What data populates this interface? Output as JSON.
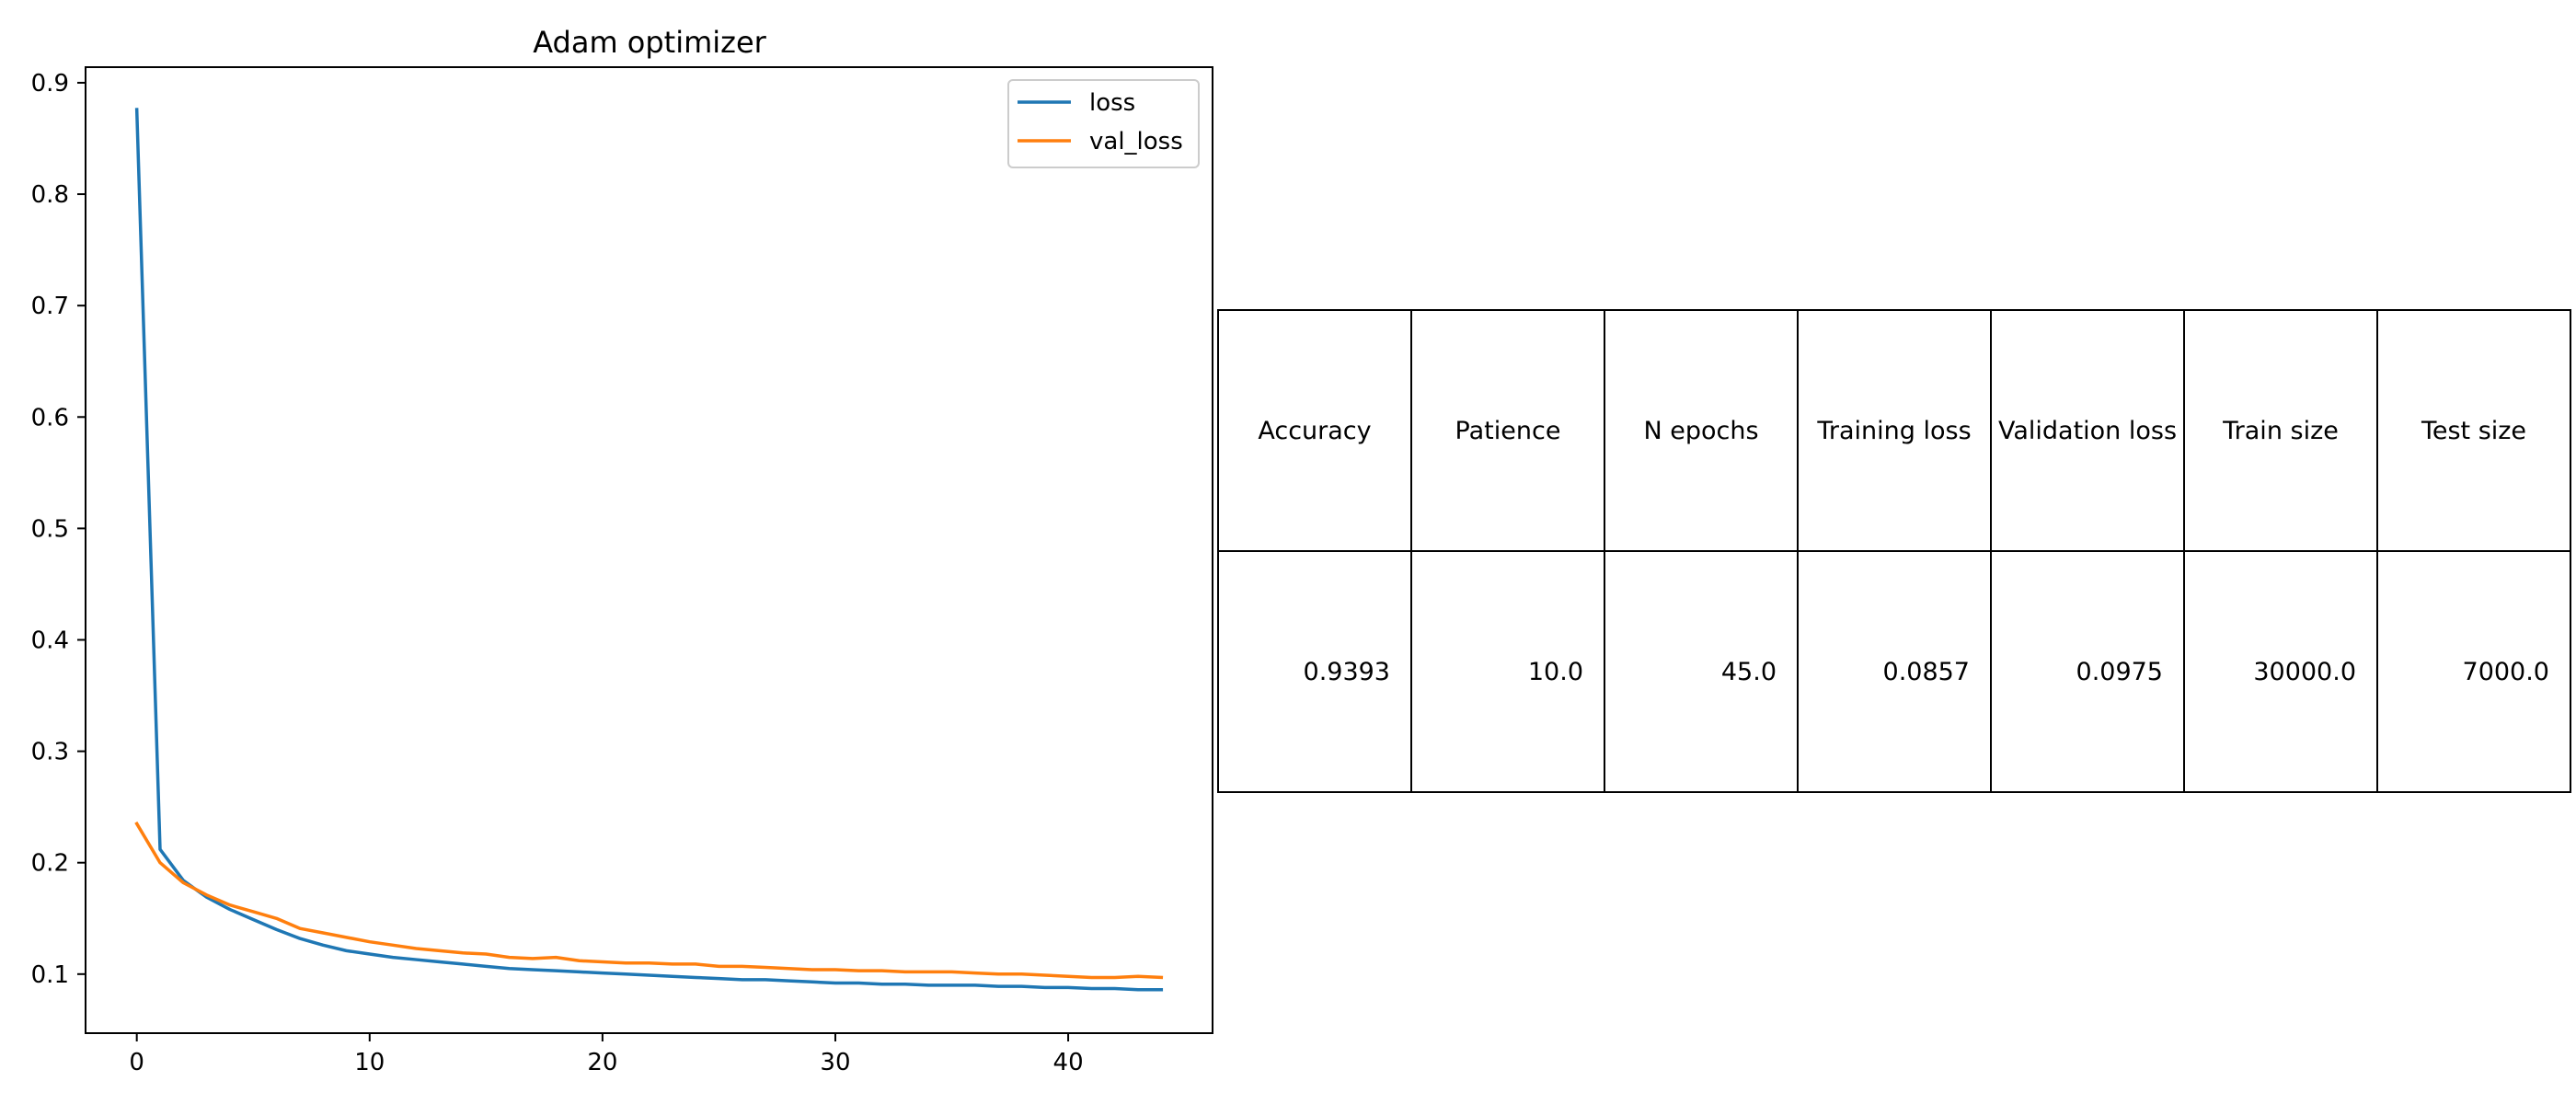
{
  "chart_data": {
    "type": "line",
    "title": "Adam optimizer",
    "xlabel": "",
    "ylabel": "",
    "xlim": [
      -2.2,
      46.2
    ],
    "ylim": [
      0.047,
      0.914
    ],
    "xticks": [
      0,
      10,
      20,
      30,
      40
    ],
    "yticks": [
      0.1,
      0.2,
      0.3,
      0.4,
      0.5,
      0.6,
      0.7,
      0.8,
      0.9
    ],
    "legend_position": "top-right",
    "grid": false,
    "x": [
      0,
      1,
      2,
      3,
      4,
      5,
      6,
      7,
      8,
      9,
      10,
      11,
      12,
      13,
      14,
      15,
      16,
      17,
      18,
      19,
      20,
      21,
      22,
      23,
      24,
      25,
      26,
      27,
      28,
      29,
      30,
      31,
      32,
      33,
      34,
      35,
      36,
      37,
      38,
      39,
      40,
      41,
      42,
      43,
      44
    ],
    "series": [
      {
        "name": "loss",
        "color": "#1f77b4",
        "values": [
          0.876,
          0.212,
          0.184,
          0.169,
          0.158,
          0.149,
          0.14,
          0.132,
          0.126,
          0.121,
          0.118,
          0.115,
          0.113,
          0.111,
          0.109,
          0.107,
          0.105,
          0.104,
          0.103,
          0.102,
          0.101,
          0.1,
          0.099,
          0.098,
          0.097,
          0.096,
          0.095,
          0.095,
          0.094,
          0.093,
          0.092,
          0.092,
          0.091,
          0.091,
          0.09,
          0.09,
          0.09,
          0.089,
          0.089,
          0.088,
          0.088,
          0.087,
          0.087,
          0.086,
          0.086
        ]
      },
      {
        "name": "val_loss",
        "color": "#ff7f0e",
        "values": [
          0.235,
          0.2,
          0.182,
          0.171,
          0.162,
          0.156,
          0.15,
          0.141,
          0.137,
          0.133,
          0.129,
          0.126,
          0.123,
          0.121,
          0.119,
          0.118,
          0.115,
          0.114,
          0.115,
          0.112,
          0.111,
          0.11,
          0.11,
          0.109,
          0.109,
          0.107,
          0.107,
          0.106,
          0.105,
          0.104,
          0.104,
          0.103,
          0.103,
          0.102,
          0.102,
          0.102,
          0.101,
          0.1,
          0.1,
          0.099,
          0.098,
          0.097,
          0.097,
          0.098,
          0.097
        ]
      }
    ],
    "table": {
      "headers": [
        "Accuracy",
        "Patience",
        "N epochs",
        "Training loss",
        "Validation loss",
        "Train size",
        "Test size"
      ],
      "values": [
        "0.9393",
        "10.0",
        "45.0",
        "0.0857",
        "0.0975",
        "30000.0",
        "7000.0"
      ]
    }
  }
}
